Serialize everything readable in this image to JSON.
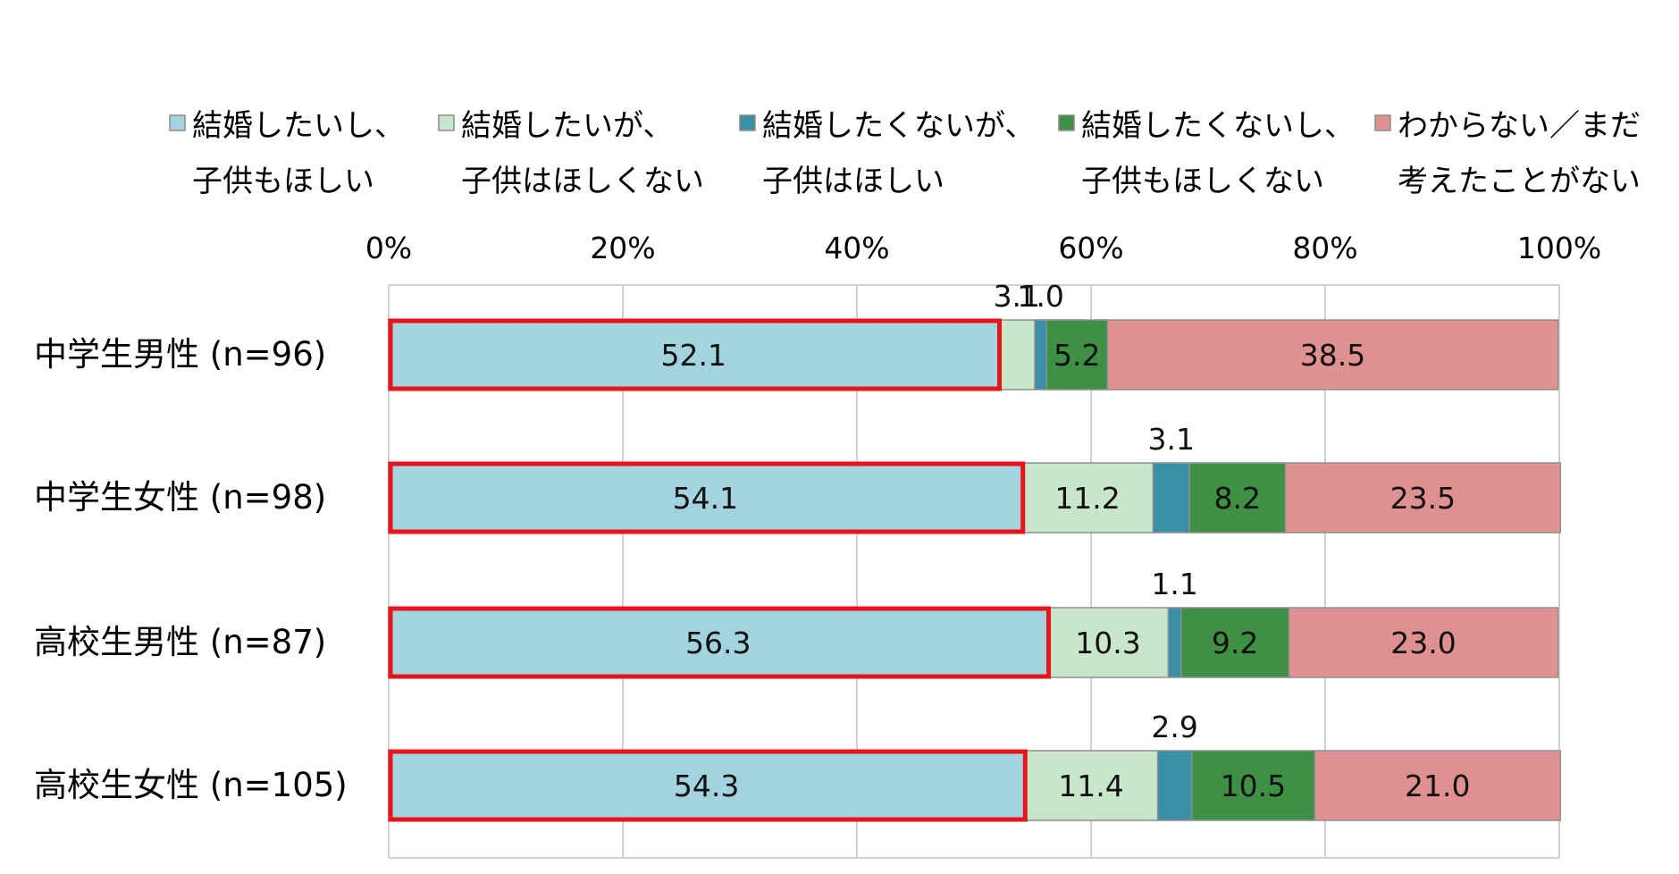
{
  "chart_data": {
    "type": "bar",
    "orientation": "horizontal",
    "stacked": true,
    "percent_axis": true,
    "xlim": [
      0,
      100
    ],
    "x_ticks": [
      "0%",
      "20%",
      "40%",
      "60%",
      "80%",
      "100%"
    ],
    "grid": true,
    "legend_position": "top",
    "categories": [
      "中学生男性 (n=96)",
      "中学生女性 (n=98)",
      "高校生男性 (n=87)",
      "高校生女性 (n=105)"
    ],
    "series": [
      {
        "name": [
          "結婚したいし、",
          "子供もほしい"
        ],
        "color": "#a3d3df",
        "values": [
          52.1,
          54.1,
          56.3,
          54.3
        ]
      },
      {
        "name": [
          "結婚したいが、",
          "子供はほしくない"
        ],
        "color": "#c8e6c9",
        "values": [
          3.1,
          11.2,
          10.3,
          11.4
        ]
      },
      {
        "name": [
          "結婚したくないが、",
          "子供はほしい"
        ],
        "color": "#3a8fa8",
        "values": [
          1.0,
          3.1,
          1.1,
          2.9
        ]
      },
      {
        "name": [
          "結婚したくないし、",
          "子供もほしくない"
        ],
        "color": "#3f8f44",
        "values": [
          5.2,
          8.2,
          9.2,
          10.5
        ]
      },
      {
        "name": [
          "わからない／まだ",
          "考えたことがない"
        ],
        "color": "#df9191",
        "values": [
          38.5,
          23.5,
          23.0,
          21.0
        ]
      }
    ],
    "label_placement": [
      [
        "inside",
        "above",
        "above",
        "inside",
        "inside"
      ],
      [
        "inside",
        "inside",
        "above",
        "inside",
        "inside"
      ],
      [
        "inside",
        "inside",
        "above",
        "inside",
        "inside"
      ],
      [
        "inside",
        "inside",
        "above",
        "inside",
        "inside"
      ]
    ],
    "highlighted_series": 0,
    "highlight_color": "#e8141b"
  }
}
